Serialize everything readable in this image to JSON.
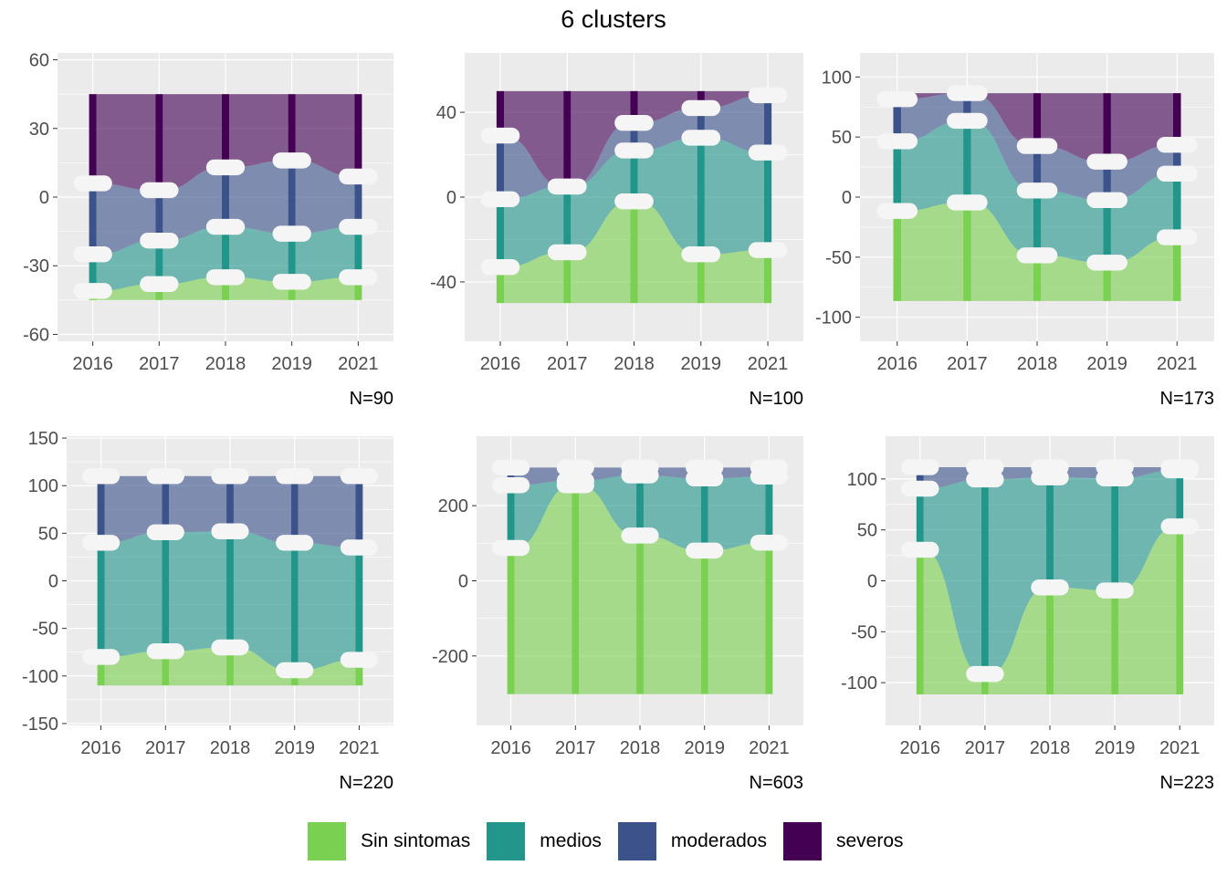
{
  "title": "6 clusters",
  "colors": {
    "Sin sintomas": "#7ad151",
    "medios": "#22968b",
    "moderados": "#3b528b",
    "severos": "#440154",
    "panel_bg": "#ebebeb",
    "grid": "#ffffff",
    "label_fill": "#f5f5f5"
  },
  "legend": {
    "items": [
      {
        "label": "Sin sintomas",
        "color": "#7ad151"
      },
      {
        "label": "medios",
        "color": "#22968b"
      },
      {
        "label": "moderados",
        "color": "#3b528b"
      },
      {
        "label": "severos",
        "color": "#440154"
      }
    ]
  },
  "chart_data": [
    {
      "type": "alluvial",
      "n_label": "N=90",
      "x": [
        "2016",
        "2017",
        "2018",
        "2019",
        "2021"
      ],
      "yticks": [
        60,
        30,
        0,
        -30,
        -60
      ],
      "ylim": [
        -63,
        63
      ],
      "stacks": [
        [
          [
            "Sin sintomas",
            4
          ],
          [
            "medios",
            16
          ],
          [
            "moderados",
            31
          ],
          [
            "severos",
            39
          ]
        ],
        [
          [
            "Sin sintomas",
            7
          ],
          [
            "medios",
            19
          ],
          [
            "moderados",
            22
          ],
          [
            "severos",
            42
          ]
        ],
        [
          [
            "Sin sintomas",
            10
          ],
          [
            "medios",
            22
          ],
          [
            "moderados",
            26
          ],
          [
            "severos",
            32
          ]
        ],
        [
          [
            "Sin sintomas",
            8
          ],
          [
            "medios",
            21
          ],
          [
            "moderados",
            32
          ],
          [
            "severos",
            29
          ]
        ],
        [
          [
            "Sin sintomas",
            10
          ],
          [
            "medios",
            22
          ],
          [
            "moderados",
            22
          ],
          [
            "severos",
            36
          ]
        ]
      ]
    },
    {
      "type": "alluvial",
      "n_label": "N=100",
      "x": [
        "2016",
        "2017",
        "2018",
        "2019",
        "2021"
      ],
      "yticks": [
        40,
        0,
        -40
      ],
      "ylim": [
        -68,
        68
      ],
      "stacks": [
        [
          [
            "Sin sintomas",
            17
          ],
          [
            "medios",
            32
          ],
          [
            "moderados",
            30
          ],
          [
            "severos",
            21
          ]
        ],
        [
          [
            "Sin sintomas",
            24
          ],
          [
            "medios",
            31
          ],
          [
            "moderados",
            0
          ],
          [
            "severos",
            45
          ]
        ],
        [
          [
            "Sin sintomas",
            48
          ],
          [
            "medios",
            24
          ],
          [
            "moderados",
            13
          ],
          [
            "severos",
            15
          ]
        ],
        [
          [
            "Sin sintomas",
            23
          ],
          [
            "medios",
            55
          ],
          [
            "moderados",
            14
          ],
          [
            "severos",
            8
          ]
        ],
        [
          [
            "Sin sintomas",
            25
          ],
          [
            "medios",
            46
          ],
          [
            "moderados",
            27
          ],
          [
            "severos",
            2
          ]
        ]
      ]
    },
    {
      "type": "alluvial",
      "n_label": "N=173",
      "x": [
        "2016",
        "2017",
        "2018",
        "2019",
        "2021"
      ],
      "yticks": [
        100,
        50,
        0,
        -50,
        -100
      ],
      "ylim": [
        -120,
        120
      ],
      "stacks": [
        [
          [
            "Sin sintomas",
            75
          ],
          [
            "medios",
            58
          ],
          [
            "moderados",
            35
          ],
          [
            "severos",
            5
          ]
        ],
        [
          [
            "Sin sintomas",
            82
          ],
          [
            "medios",
            68
          ],
          [
            "moderados",
            23
          ],
          [
            "severos",
            0
          ]
        ],
        [
          [
            "Sin sintomas",
            38
          ],
          [
            "medios",
            54
          ],
          [
            "moderados",
            37
          ],
          [
            "severos",
            44
          ]
        ],
        [
          [
            "Sin sintomas",
            32
          ],
          [
            "medios",
            52
          ],
          [
            "moderados",
            32
          ],
          [
            "severos",
            57
          ]
        ],
        [
          [
            "Sin sintomas",
            53
          ],
          [
            "medios",
            53
          ],
          [
            "moderados",
            24
          ],
          [
            "severos",
            43
          ]
        ]
      ]
    },
    {
      "type": "alluvial",
      "n_label": "N=220",
      "x": [
        "2016",
        "2017",
        "2018",
        "2019",
        "2021"
      ],
      "yticks": [
        150,
        100,
        50,
        0,
        -50,
        -100,
        -150
      ],
      "ylim": [
        -152,
        152
      ],
      "stacks": [
        [
          [
            "Sin sintomas",
            30
          ],
          [
            "medios",
            120
          ],
          [
            "moderados",
            70
          ],
          [
            "severos",
            0
          ]
        ],
        [
          [
            "Sin sintomas",
            36
          ],
          [
            "medios",
            125
          ],
          [
            "moderados",
            59
          ],
          [
            "severos",
            0
          ]
        ],
        [
          [
            "Sin sintomas",
            40
          ],
          [
            "medios",
            122
          ],
          [
            "moderados",
            58
          ],
          [
            "severos",
            0
          ]
        ],
        [
          [
            "Sin sintomas",
            16
          ],
          [
            "medios",
            134
          ],
          [
            "moderados",
            70
          ],
          [
            "severos",
            0
          ]
        ],
        [
          [
            "Sin sintomas",
            27
          ],
          [
            "medios",
            118
          ],
          [
            "moderados",
            75
          ],
          [
            "severos",
            0
          ]
        ]
      ]
    },
    {
      "type": "alluvial",
      "n_label": "N=603",
      "x": [
        "2016",
        "2017",
        "2018",
        "2019",
        "2021"
      ],
      "yticks": [
        200,
        0,
        -200
      ],
      "ylim": [
        -385,
        385
      ],
      "stacks": [
        [
          [
            "Sin sintomas",
            389
          ],
          [
            "medios",
            167
          ],
          [
            "moderados",
            47
          ],
          [
            "severos",
            0
          ]
        ],
        [
          [
            "Sin sintomas",
            556
          ],
          [
            "medios",
            12
          ],
          [
            "moderados",
            35
          ],
          [
            "severos",
            0
          ]
        ],
        [
          [
            "Sin sintomas",
            422
          ],
          [
            "medios",
            160
          ],
          [
            "moderados",
            21
          ],
          [
            "severos",
            0
          ]
        ],
        [
          [
            "Sin sintomas",
            382
          ],
          [
            "medios",
            192
          ],
          [
            "moderados",
            29
          ],
          [
            "severos",
            0
          ]
        ],
        [
          [
            "Sin sintomas",
            403
          ],
          [
            "medios",
            176
          ],
          [
            "moderados",
            24
          ],
          [
            "severos",
            0
          ]
        ]
      ]
    },
    {
      "type": "alluvial",
      "n_label": "N=223",
      "x": [
        "2016",
        "2017",
        "2018",
        "2019",
        "2021"
      ],
      "yticks": [
        100,
        50,
        0,
        -50,
        -100
      ],
      "ylim": [
        -142,
        142
      ],
      "stacks": [
        [
          [
            "Sin sintomas",
            142
          ],
          [
            "medios",
            60
          ],
          [
            "moderados",
            21
          ],
          [
            "severos",
            0
          ]
        ],
        [
          [
            "Sin sintomas",
            20
          ],
          [
            "medios",
            191
          ],
          [
            "moderados",
            12
          ],
          [
            "severos",
            0
          ]
        ],
        [
          [
            "Sin sintomas",
            105
          ],
          [
            "medios",
            108
          ],
          [
            "moderados",
            10
          ],
          [
            "severos",
            0
          ]
        ],
        [
          [
            "Sin sintomas",
            102
          ],
          [
            "medios",
            110
          ],
          [
            "moderados",
            11
          ],
          [
            "severos",
            0
          ]
        ],
        [
          [
            "Sin sintomas",
            165
          ],
          [
            "medios",
            55
          ],
          [
            "moderados",
            3
          ],
          [
            "severos",
            0
          ]
        ]
      ]
    }
  ]
}
